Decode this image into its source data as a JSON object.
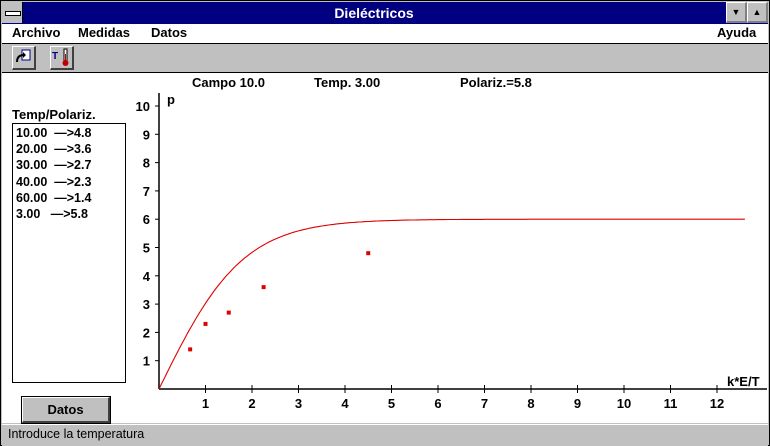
{
  "window": {
    "title": "Dieléctricos"
  },
  "menu": {
    "archivo": "Archivo",
    "medidas": "Medidas",
    "datos": "Datos",
    "ayuda": "Ayuda"
  },
  "status": {
    "campo": "Campo 10.0",
    "temp": "Temp. 3.00",
    "polariz": "Polariz.=5.8"
  },
  "panel": {
    "label": "Temp/Polariz.",
    "items": [
      "10.00  —>4.8",
      "20.00  —>3.6",
      "30.00  —>2.7",
      "40.00  —>2.3",
      "60.00  —>1.4",
      "3.00   —>5.8"
    ]
  },
  "datos_button": "Datos",
  "statusbar": "Introduce la temperatura",
  "chart_data": {
    "type": "line",
    "xlabel": "k*E/T",
    "ylabel": "p",
    "xlim": [
      0,
      12.6
    ],
    "ylim": [
      0,
      10
    ],
    "xticks": [
      1,
      2,
      3,
      4,
      5,
      6,
      7,
      8,
      9,
      10,
      11,
      12
    ],
    "yticks": [
      1,
      2,
      3,
      4,
      5,
      6,
      7,
      8,
      9,
      10
    ],
    "series": [
      {
        "type": "scatter",
        "x": [
          0.67,
          1.0,
          1.5,
          2.25,
          4.5
        ],
        "y": [
          1.4,
          2.3,
          2.7,
          3.6,
          4.8
        ]
      }
    ],
    "curve_asymptote": 6.0
  }
}
